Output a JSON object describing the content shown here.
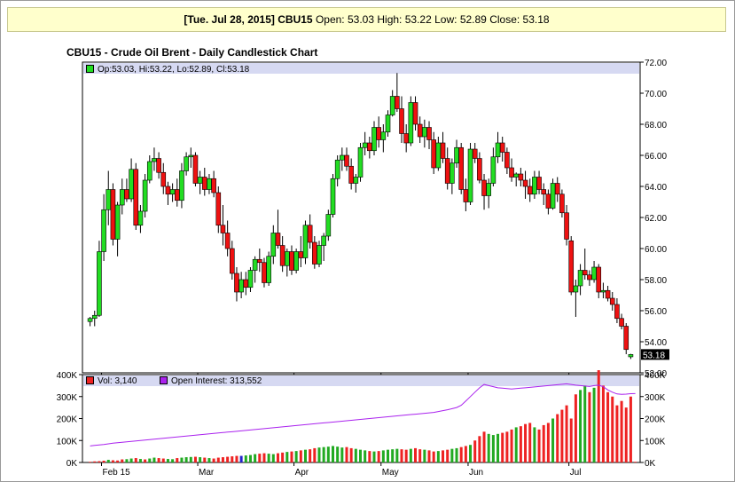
{
  "header": {
    "date": "[Tue. Jul 28, 2015]",
    "symbol": "CBU15",
    "open_label": "Open:",
    "open": "53.03",
    "high_label": "High:",
    "high": "53.22",
    "low_label": "Low:",
    "low": "52.89",
    "close_label": "Close:",
    "close": "53.18"
  },
  "title": "CBU15 - Crude Oil Brent - Daily Candlestick Chart",
  "legend": {
    "price": "Op:53.03, Hi:53.22, Lo:52.89, Cl:53.18",
    "volume": "Vol: 3,140",
    "open_interest": "Open Interest: 313,552"
  },
  "last_price_label": "53.18",
  "colors": {
    "up": "#22dd22",
    "down": "#ee1111",
    "open_interest": "#aa22ee",
    "volume_up": "#22aa22",
    "volume_down": "#ee2222",
    "volume_neutral": "#2222cc"
  },
  "chart_data": [
    {
      "type": "candlestick",
      "title": "CBU15 - Crude Oil Brent - Daily Candlestick Chart",
      "y_ticks": [
        "52.00",
        "54.00",
        "56.00",
        "58.00",
        "60.00",
        "62.00",
        "64.00",
        "66.00",
        "68.00",
        "70.00",
        "72.00"
      ],
      "ylim": [
        52,
        72
      ],
      "x_tick_labels": [
        "Feb 15",
        "Mar",
        "Apr",
        "May",
        "Jun",
        "Jul"
      ],
      "x_tick_index": [
        3,
        24,
        45,
        64,
        83,
        105
      ],
      "candles": [
        [
          55.3,
          55.6,
          55.0,
          55.5
        ],
        [
          55.5,
          56.0,
          55.0,
          55.7
        ],
        [
          55.7,
          60.5,
          55.6,
          59.8
        ],
        [
          59.8,
          63.5,
          59.2,
          62.5
        ],
        [
          62.5,
          65.0,
          61.5,
          63.8
        ],
        [
          63.8,
          64.2,
          60.2,
          60.6
        ],
        [
          60.6,
          63.0,
          59.5,
          62.8
        ],
        [
          62.8,
          64.5,
          62.2,
          63.8
        ],
        [
          63.8,
          64.5,
          63.0,
          63.2
        ],
        [
          63.2,
          65.8,
          63.0,
          65.1
        ],
        [
          65.1,
          65.5,
          61.2,
          61.5
        ],
        [
          61.5,
          62.8,
          61.0,
          62.4
        ],
        [
          62.4,
          64.8,
          62.0,
          64.4
        ],
        [
          64.4,
          66.0,
          64.2,
          65.6
        ],
        [
          65.6,
          66.5,
          65.0,
          65.8
        ],
        [
          65.8,
          66.2,
          64.5,
          64.9
        ],
        [
          64.9,
          65.5,
          63.5,
          64.0
        ],
        [
          64.0,
          64.3,
          62.8,
          63.5
        ],
        [
          63.5,
          64.2,
          63.0,
          63.8
        ],
        [
          63.8,
          64.5,
          62.7,
          63.1
        ],
        [
          63.1,
          65.5,
          62.6,
          65.0
        ],
        [
          65.0,
          66.2,
          64.7,
          65.9
        ],
        [
          65.9,
          66.5,
          65.2,
          66.0
        ],
        [
          66.0,
          66.2,
          64.0,
          64.2
        ],
        [
          64.2,
          65.0,
          63.5,
          64.6
        ],
        [
          64.6,
          65.2,
          63.4,
          63.8
        ],
        [
          63.8,
          64.8,
          63.5,
          64.5
        ],
        [
          64.5,
          65.0,
          63.3,
          63.6
        ],
        [
          63.6,
          64.0,
          61.0,
          61.5
        ],
        [
          61.5,
          62.8,
          60.2,
          61.0
        ],
        [
          61.0,
          61.8,
          59.5,
          60.0
        ],
        [
          60.0,
          60.5,
          58.0,
          58.4
        ],
        [
          58.4,
          58.8,
          56.6,
          57.2
        ],
        [
          57.2,
          58.5,
          56.8,
          58.0
        ],
        [
          58.0,
          58.5,
          57.0,
          57.5
        ],
        [
          57.5,
          58.8,
          57.2,
          58.6
        ],
        [
          58.6,
          59.5,
          57.8,
          59.3
        ],
        [
          59.3,
          60.0,
          58.5,
          59.1
        ],
        [
          59.1,
          59.4,
          57.5,
          57.8
        ],
        [
          57.8,
          59.8,
          57.6,
          59.5
        ],
        [
          59.5,
          61.5,
          59.0,
          61.0
        ],
        [
          61.0,
          62.5,
          60.0,
          60.2
        ],
        [
          60.2,
          60.8,
          58.5,
          58.9
        ],
        [
          58.9,
          60.0,
          58.2,
          59.8
        ],
        [
          59.8,
          60.2,
          58.3,
          58.6
        ],
        [
          58.6,
          60.0,
          58.4,
          59.8
        ],
        [
          59.8,
          60.8,
          58.8,
          59.4
        ],
        [
          59.4,
          61.8,
          59.0,
          61.5
        ],
        [
          61.5,
          62.2,
          60.0,
          60.4
        ],
        [
          60.4,
          60.8,
          58.7,
          59.0
        ],
        [
          59.0,
          60.5,
          58.8,
          60.2
        ],
        [
          60.2,
          61.0,
          59.2,
          60.8
        ],
        [
          60.8,
          62.5,
          60.5,
          62.2
        ],
        [
          62.2,
          64.8,
          62.0,
          64.5
        ],
        [
          64.5,
          66.0,
          64.0,
          65.7
        ],
        [
          65.7,
          66.5,
          65.0,
          66.0
        ],
        [
          66.0,
          66.5,
          65.0,
          65.3
        ],
        [
          65.3,
          65.8,
          63.8,
          64.2
        ],
        [
          64.2,
          64.8,
          63.6,
          64.6
        ],
        [
          64.6,
          66.8,
          64.3,
          66.5
        ],
        [
          66.5,
          67.5,
          66.0,
          66.8
        ],
        [
          66.8,
          67.2,
          65.8,
          66.3
        ],
        [
          66.3,
          68.2,
          66.0,
          67.8
        ],
        [
          67.8,
          68.5,
          66.5,
          67.0
        ],
        [
          67.0,
          68.0,
          66.2,
          67.5
        ],
        [
          67.5,
          68.9,
          67.2,
          68.6
        ],
        [
          68.6,
          70.2,
          68.5,
          69.8
        ],
        [
          69.8,
          71.3,
          68.8,
          69.0
        ],
        [
          69.0,
          69.8,
          66.8,
          67.4
        ],
        [
          67.4,
          68.0,
          66.2,
          66.8
        ],
        [
          66.8,
          69.8,
          66.6,
          69.4
        ],
        [
          69.4,
          69.8,
          67.6,
          68.0
        ],
        [
          68.0,
          68.5,
          66.8,
          67.2
        ],
        [
          67.2,
          68.3,
          66.5,
          67.8
        ],
        [
          67.8,
          68.2,
          66.4,
          67.0
        ],
        [
          67.0,
          67.5,
          64.8,
          65.2
        ],
        [
          65.2,
          67.2,
          65.0,
          66.8
        ],
        [
          66.8,
          67.5,
          65.5,
          65.8
        ],
        [
          65.8,
          66.5,
          63.8,
          64.2
        ],
        [
          64.2,
          65.8,
          63.5,
          65.5
        ],
        [
          65.5,
          67.0,
          65.2,
          66.5
        ],
        [
          66.5,
          66.8,
          63.5,
          63.8
        ],
        [
          63.8,
          64.5,
          62.4,
          63.0
        ],
        [
          63.0,
          66.8,
          62.8,
          66.4
        ],
        [
          66.4,
          66.8,
          65.5,
          65.8
        ],
        [
          65.8,
          66.2,
          64.2,
          64.4
        ],
        [
          64.4,
          64.8,
          62.5,
          63.4
        ],
        [
          63.4,
          64.5,
          62.6,
          64.2
        ],
        [
          64.2,
          66.5,
          64.0,
          65.9
        ],
        [
          65.9,
          67.5,
          65.5,
          66.8
        ],
        [
          66.8,
          67.2,
          65.6,
          66.2
        ],
        [
          66.2,
          66.5,
          64.8,
          65.2
        ],
        [
          65.2,
          65.8,
          64.3,
          64.6
        ],
        [
          64.6,
          64.9,
          64.0,
          64.8
        ],
        [
          64.8,
          65.2,
          64.0,
          64.4
        ],
        [
          64.4,
          65.0,
          63.2,
          64.0
        ],
        [
          64.0,
          64.5,
          63.0,
          63.5
        ],
        [
          63.5,
          65.0,
          63.2,
          64.6
        ],
        [
          64.6,
          65.0,
          63.5,
          63.8
        ],
        [
          63.8,
          64.2,
          62.8,
          63.5
        ],
        [
          63.5,
          63.8,
          62.2,
          62.6
        ],
        [
          62.6,
          64.5,
          62.5,
          64.2
        ],
        [
          64.2,
          64.6,
          63.0,
          63.5
        ],
        [
          63.5,
          63.8,
          62.0,
          62.3
        ],
        [
          62.3,
          62.8,
          60.2,
          60.6
        ],
        [
          60.5,
          60.8,
          57.0,
          57.2
        ],
        [
          57.2,
          58.0,
          55.6,
          57.6
        ],
        [
          57.6,
          59.0,
          57.0,
          58.6
        ],
        [
          58.6,
          60.0,
          58.0,
          58.3
        ],
        [
          58.3,
          58.6,
          57.6,
          58.0
        ],
        [
          58.0,
          59.2,
          57.8,
          58.8
        ],
        [
          58.8,
          59.0,
          56.8,
          57.2
        ],
        [
          57.2,
          57.8,
          56.8,
          57.3
        ],
        [
          57.3,
          57.6,
          56.6,
          56.8
        ],
        [
          56.8,
          57.2,
          56.0,
          56.4
        ],
        [
          56.4,
          56.8,
          55.2,
          55.5
        ],
        [
          55.5,
          55.8,
          54.8,
          55.0
        ],
        [
          55.0,
          55.2,
          53.2,
          53.5
        ],
        [
          53.03,
          53.22,
          52.89,
          53.18
        ]
      ]
    },
    {
      "type": "bar",
      "title": "Volume / Open Interest",
      "y_ticks_left": [
        "0K",
        "100K",
        "200K",
        "300K",
        "400K"
      ],
      "y_ticks_right": [
        "0K",
        "100K",
        "200K",
        "300K",
        "400K"
      ],
      "ylim": [
        0,
        400000
      ],
      "volume_up": [
        0,
        0,
        0,
        0,
        1,
        0,
        0,
        0,
        1,
        1,
        0,
        1,
        0,
        1,
        1,
        0,
        0,
        1,
        1,
        0,
        1,
        1,
        1,
        0,
        1,
        0,
        1,
        0,
        0,
        0,
        0,
        0,
        0,
        1,
        1,
        1,
        1,
        0,
        0,
        1,
        1,
        0,
        0,
        1,
        0,
        1,
        0,
        1,
        0,
        0,
        1,
        1,
        1,
        1,
        1,
        1,
        0,
        0,
        1,
        1,
        1,
        0,
        1,
        0,
        1,
        1,
        1,
        1,
        0,
        0,
        1,
        0,
        0,
        1,
        0,
        0,
        1,
        0,
        0,
        1,
        1,
        0,
        0,
        1,
        0,
        0,
        0,
        1,
        1,
        1,
        0,
        0,
        0,
        1,
        0,
        0,
        0,
        1,
        0,
        0,
        0,
        1,
        0,
        0,
        0,
        0,
        0,
        1,
        1,
        0,
        1,
        0,
        0,
        0,
        0,
        0,
        0,
        0
      ],
      "volume": [
        3000,
        5000,
        6000,
        8000,
        12000,
        10000,
        9000,
        14000,
        15000,
        18000,
        20000,
        16000,
        14000,
        18000,
        22000,
        20000,
        18000,
        16000,
        15000,
        20000,
        22000,
        24000,
        25000,
        26000,
        24000,
        22000,
        20000,
        18000,
        22000,
        24000,
        26000,
        28000,
        30000,
        30000,
        32000,
        34000,
        38000,
        40000,
        42000,
        40000,
        38000,
        42000,
        45000,
        48000,
        50000,
        52000,
        55000,
        58000,
        60000,
        65000,
        68000,
        70000,
        72000,
        75000,
        72000,
        68000,
        70000,
        65000,
        62000,
        58000,
        55000,
        52000,
        50000,
        52000,
        55000,
        58000,
        60000,
        62000,
        60000,
        58000,
        62000,
        65000,
        60000,
        58000,
        55000,
        50000,
        52000,
        55000,
        58000,
        62000,
        65000,
        70000,
        75000,
        80000,
        100000,
        120000,
        140000,
        130000,
        125000,
        130000,
        135000,
        140000,
        150000,
        160000,
        165000,
        175000,
        180000,
        160000,
        150000,
        170000,
        180000,
        200000,
        220000,
        240000,
        260000,
        200000,
        310000,
        330000,
        350000,
        320000,
        340000,
        420000,
        350000,
        320000,
        300000,
        260000,
        280000,
        250000,
        300000,
        3140
      ],
      "open_interest": [
        75000,
        78000,
        80000,
        82000,
        85000,
        88000,
        90000,
        92000,
        94000,
        96000,
        98000,
        100000,
        102000,
        104000,
        106000,
        108000,
        110000,
        112000,
        114000,
        116000,
        118000,
        120000,
        122000,
        124000,
        126000,
        128000,
        130000,
        132000,
        134000,
        136000,
        138000,
        140000,
        142000,
        144000,
        146000,
        148000,
        150000,
        152000,
        154000,
        156000,
        158000,
        160000,
        162000,
        164000,
        166000,
        168000,
        170000,
        172000,
        174000,
        176000,
        178000,
        180000,
        182000,
        184000,
        186000,
        188000,
        190000,
        192000,
        194000,
        196000,
        198000,
        200000,
        202000,
        204000,
        206000,
        208000,
        210000,
        212000,
        214000,
        216000,
        218000,
        220000,
        222000,
        224000,
        226000,
        228000,
        232000,
        236000,
        240000,
        245000,
        250000,
        260000,
        280000,
        300000,
        320000,
        340000,
        355000,
        350000,
        345000,
        340000,
        338000,
        336000,
        334000,
        336000,
        338000,
        340000,
        342000,
        344000,
        346000,
        348000,
        350000,
        352000,
        354000,
        356000,
        358000,
        355000,
        352000,
        350000,
        348000,
        346000,
        350000,
        352000,
        345000,
        330000,
        320000,
        312000,
        310000,
        311000,
        313000,
        313552
      ]
    }
  ]
}
